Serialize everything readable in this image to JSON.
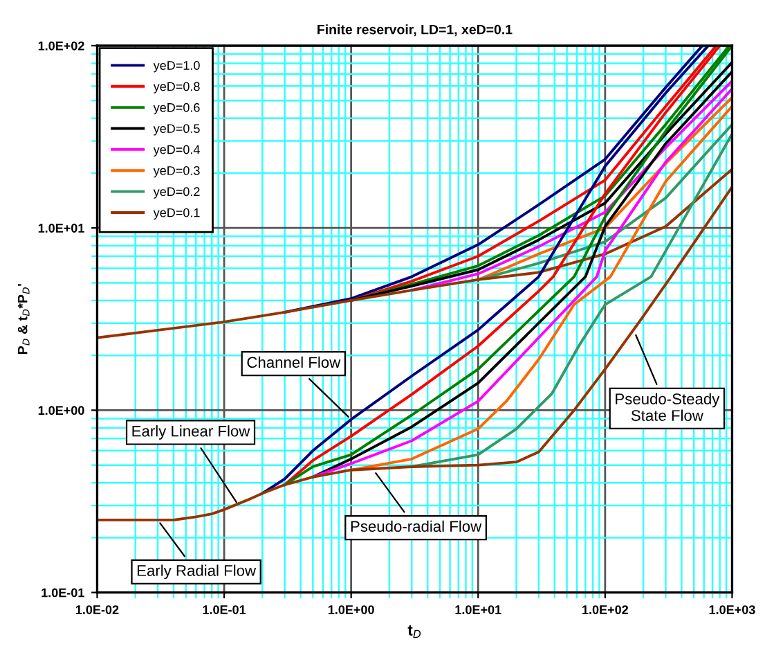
{
  "chart_data": {
    "type": "line",
    "title": "Finite reservoir, LD=1, xeD=0.1",
    "xlabel": "t$_{D}$",
    "ylabel": "P$_{D}$ & t$_{D}$*P$_{D}$'",
    "log": "xy",
    "xlim": [
      0.01,
      1000
    ],
    "ylim": [
      0.1,
      100
    ],
    "xticks": [
      {
        "value": 0.01,
        "label": "1.0E-02"
      },
      {
        "value": 0.02,
        "label": null
      },
      {
        "value": 0.03,
        "label": null
      },
      {
        "value": 0.04,
        "label": null
      },
      {
        "value": 0.05,
        "label": null
      },
      {
        "value": 0.06,
        "label": null
      },
      {
        "value": 0.07,
        "label": null
      },
      {
        "value": 0.08,
        "label": null
      },
      {
        "value": 0.09,
        "label": null
      },
      {
        "value": 0.1,
        "label": "1.0E-01"
      },
      {
        "value": 0.2,
        "label": null
      },
      {
        "value": 0.3,
        "label": null
      },
      {
        "value": 0.4,
        "label": null
      },
      {
        "value": 0.5,
        "label": null
      },
      {
        "value": 0.6,
        "label": null
      },
      {
        "value": 0.7,
        "label": null
      },
      {
        "value": 0.8,
        "label": null
      },
      {
        "value": 0.9,
        "label": null
      },
      {
        "value": 1,
        "label": "1.0E+00"
      },
      {
        "value": 2,
        "label": null
      },
      {
        "value": 3,
        "label": null
      },
      {
        "value": 4,
        "label": null
      },
      {
        "value": 5,
        "label": null
      },
      {
        "value": 6,
        "label": null
      },
      {
        "value": 7,
        "label": null
      },
      {
        "value": 8,
        "label": null
      },
      {
        "value": 9,
        "label": null
      },
      {
        "value": 10,
        "label": "1.0E+01"
      },
      {
        "value": 20,
        "label": null
      },
      {
        "value": 30,
        "label": null
      },
      {
        "value": 40,
        "label": null
      },
      {
        "value": 50,
        "label": null
      },
      {
        "value": 60,
        "label": null
      },
      {
        "value": 70,
        "label": null
      },
      {
        "value": 80,
        "label": null
      },
      {
        "value": 90,
        "label": null
      },
      {
        "value": 100,
        "label": "1.0E+02"
      },
      {
        "value": 200,
        "label": null
      },
      {
        "value": 300,
        "label": null
      },
      {
        "value": 400,
        "label": null
      },
      {
        "value": 500,
        "label": null
      },
      {
        "value": 600,
        "label": null
      },
      {
        "value": 700,
        "label": null
      },
      {
        "value": 800,
        "label": null
      },
      {
        "value": 900,
        "label": null
      },
      {
        "value": 1000,
        "label": "1.0E+03"
      }
    ],
    "yticks": [
      {
        "value": 0.1,
        "label": "1.0E-01"
      },
      {
        "value": 0.2,
        "label": null
      },
      {
        "value": 0.3,
        "label": null
      },
      {
        "value": 0.4,
        "label": null
      },
      {
        "value": 0.5,
        "label": null
      },
      {
        "value": 0.6,
        "label": null
      },
      {
        "value": 0.7,
        "label": null
      },
      {
        "value": 0.8,
        "label": null
      },
      {
        "value": 0.9,
        "label": null
      },
      {
        "value": 1,
        "label": "1.0E+00"
      },
      {
        "value": 2,
        "label": null
      },
      {
        "value": 3,
        "label": null
      },
      {
        "value": 4,
        "label": null
      },
      {
        "value": 5,
        "label": null
      },
      {
        "value": 6,
        "label": null
      },
      {
        "value": 7,
        "label": null
      },
      {
        "value": 8,
        "label": null
      },
      {
        "value": 9,
        "label": null
      },
      {
        "value": 10,
        "label": "1.0E+01"
      },
      {
        "value": 20,
        "label": null
      },
      {
        "value": 30,
        "label": null
      },
      {
        "value": 40,
        "label": null
      },
      {
        "value": 50,
        "label": null
      },
      {
        "value": 60,
        "label": null
      },
      {
        "value": 70,
        "label": null
      },
      {
        "value": 80,
        "label": null
      },
      {
        "value": 90,
        "label": null
      },
      {
        "value": 100,
        "label": "1.0E+02"
      }
    ],
    "grid": true,
    "legend": "top left",
    "marker": "none",
    "line_style": "solid",
    "series": [
      {
        "name": "yeD=1.0",
        "color": "#000080",
        "x": [
          0.3,
          1,
          3,
          10,
          30,
          100,
          300,
          583
        ],
        "values": [
          3.45,
          4.1,
          5.4,
          8.1,
          13.4,
          23.8,
          59,
          100
        ]
      },
      {
        "name": "yeD=0.8",
        "color": "#ff0000",
        "x": [
          1,
          3,
          10,
          30,
          100,
          300,
          752
        ],
        "values": [
          4.0,
          5.1,
          7.0,
          10.9,
          18.3,
          46.5,
          100
        ]
      },
      {
        "name": "yeD=0.6",
        "color": "#008000",
        "x": [
          1,
          3,
          10,
          30,
          100,
          300,
          950
        ],
        "values": [
          4.0,
          4.9,
          6.2,
          9.1,
          15,
          37,
          100
        ]
      },
      {
        "name": "yeD=0.5",
        "color": "#000000",
        "x": [
          1,
          3,
          10,
          30,
          100,
          300,
          1000
        ],
        "values": [
          4.0,
          4.8,
          5.9,
          8.6,
          13.7,
          32.8,
          81
        ]
      },
      {
        "name": "yeD=0.4",
        "color": "#ff00ff",
        "x": [
          3,
          10,
          30,
          100,
          300,
          1000
        ],
        "values": [
          4.55,
          5.6,
          7.9,
          12.2,
          27.6,
          64
        ]
      },
      {
        "name": "yeD=0.3",
        "color": "#ff6600",
        "x": [
          10,
          30,
          100,
          300,
          1000
        ],
        "values": [
          5.2,
          7.2,
          10,
          22.6,
          52
        ]
      },
      {
        "name": "yeD=0.2",
        "color": "#339966",
        "x": [
          10,
          30,
          100,
          300,
          1000
        ],
        "values": [
          5.2,
          6.4,
          8.4,
          14.6,
          37
        ]
      },
      {
        "name": "yeD=0.1",
        "color": "#993300",
        "x": [
          0.01,
          0.1,
          0.3,
          1,
          3,
          10,
          30,
          100,
          300,
          1000
        ],
        "values": [
          2.5,
          3.05,
          3.45,
          4.0,
          4.55,
          5.2,
          5.7,
          7.2,
          10.2,
          21
        ]
      },
      {
        "color": "#000080",
        "x": [
          0.2,
          0.3,
          0.5,
          1,
          3,
          10,
          12.7,
          30,
          100,
          300,
          650
        ],
        "values": [
          0.35,
          0.42,
          0.6,
          0.89,
          1.54,
          2.76,
          3.2,
          5.4,
          21.8,
          55,
          100
        ]
      },
      {
        "color": "#ff0000",
        "x": [
          0.3,
          0.5,
          1,
          3,
          10,
          30,
          39,
          100,
          300,
          800
        ],
        "values": [
          0.39,
          0.53,
          0.72,
          1.22,
          2.25,
          4.5,
          5.4,
          15.4,
          43,
          100
        ]
      },
      {
        "color": "#008000",
        "x": [
          0.3,
          0.5,
          1,
          3,
          10,
          57,
          100,
          300,
          1000
        ],
        "values": [
          0.39,
          0.49,
          0.57,
          0.94,
          1.68,
          5.4,
          11.5,
          34,
          100
        ]
      },
      {
        "color": "#000000",
        "x": [
          0.5,
          1,
          3,
          10,
          70,
          100,
          300,
          1000
        ],
        "values": [
          0.43,
          0.54,
          0.81,
          1.41,
          5.4,
          10.2,
          29,
          72
        ]
      },
      {
        "color": "#ff00ff",
        "x": [
          0.5,
          1,
          3,
          10,
          86,
          100,
          300,
          1000
        ],
        "values": [
          0.43,
          0.51,
          0.68,
          1.12,
          5.4,
          7.5,
          23,
          58
        ]
      },
      {
        "color": "#ff6600",
        "x": [
          1,
          3,
          10,
          16.7,
          30,
          57,
          110,
          300,
          1000
        ],
        "values": [
          0.47,
          0.54,
          0.79,
          1.12,
          1.9,
          3.8,
          5.4,
          18,
          46.5
        ]
      },
      {
        "color": "#339966",
        "x": [
          3,
          10,
          20,
          38,
          62,
          100,
          230,
          1000
        ],
        "values": [
          0.49,
          0.57,
          0.79,
          1.23,
          2.25,
          3.8,
          5.4,
          32.8
        ]
      },
      {
        "color": "#993300",
        "x": [
          0.01,
          0.02,
          0.04,
          0.06,
          0.08,
          0.1,
          0.15,
          0.2,
          0.3,
          0.5,
          1,
          3,
          10,
          20,
          30,
          57,
          100,
          195,
          330,
          1000
        ],
        "values": [
          0.25,
          0.25,
          0.25,
          0.26,
          0.27,
          0.285,
          0.32,
          0.35,
          0.39,
          0.43,
          0.47,
          0.49,
          0.5,
          0.52,
          0.59,
          1.0,
          1.68,
          3.2,
          5.4,
          16.8
        ]
      }
    ],
    "annotations": [
      {
        "text": "Early Radial Flow",
        "x": 0.03,
        "y": 0.25
      },
      {
        "text": "Early Linear Flow",
        "x": 0.13,
        "y": 0.3
      },
      {
        "text": "Channel Flow",
        "x": 1,
        "y": 0.89
      },
      {
        "text": "Pseudo-radial Flow",
        "x": 1.5,
        "y": 0.47
      },
      {
        "text": "Pseudo-Steady\nState Flow",
        "x": 170,
        "y": 2.7
      }
    ]
  }
}
